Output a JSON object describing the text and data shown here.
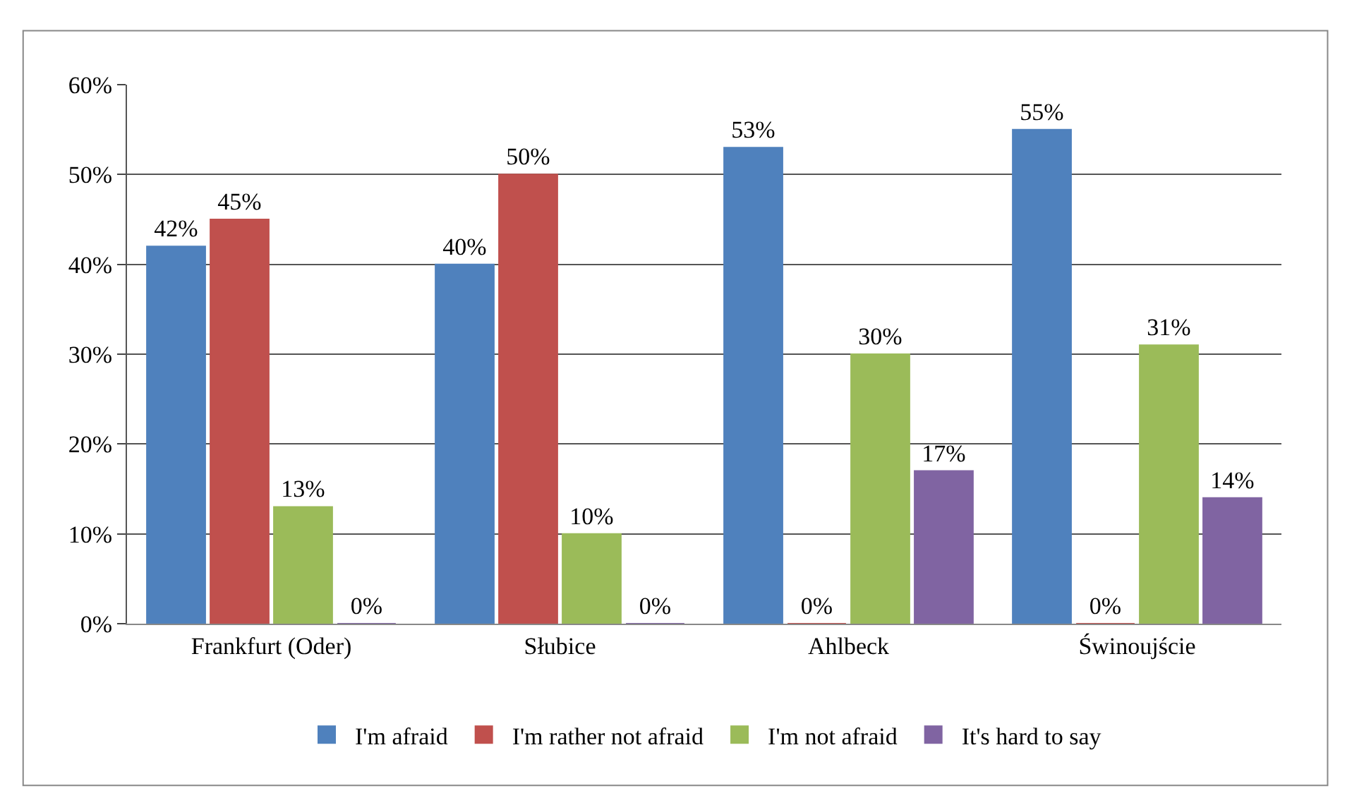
{
  "chart_data": {
    "type": "bar",
    "categories": [
      "Frankfurt (Oder)",
      "Słubice",
      "Ahlbeck",
      "Świnoujście"
    ],
    "series": [
      {
        "name": "I'm afraid",
        "color": "#4f81bd",
        "values": [
          42,
          40,
          53,
          55
        ],
        "value_labels": [
          "42%",
          "40%",
          "53%",
          "55%"
        ]
      },
      {
        "name": "I'm rather not afraid",
        "color": "#c0504d",
        "values": [
          45,
          50,
          0,
          0
        ],
        "value_labels": [
          "45%",
          "50%",
          "0%",
          "0%"
        ]
      },
      {
        "name": "I'm not afraid",
        "color": "#9bbb59",
        "values": [
          13,
          10,
          30,
          31
        ],
        "value_labels": [
          "13%",
          "10%",
          "30%",
          "31%"
        ]
      },
      {
        "name": "It's hard to say",
        "color": "#8064a2",
        "values": [
          0,
          0,
          17,
          14
        ],
        "value_labels": [
          "0%",
          "0%",
          "17%",
          "14%"
        ]
      }
    ],
    "ylim": [
      0,
      60
    ],
    "yticks": [
      {
        "value": 0,
        "label": "0%"
      },
      {
        "value": 10,
        "label": "10%"
      },
      {
        "value": 20,
        "label": "20%"
      },
      {
        "value": 30,
        "label": "30%"
      },
      {
        "value": 40,
        "label": "40%"
      },
      {
        "value": 50,
        "label": "50%"
      },
      {
        "value": 60,
        "label": "60%"
      }
    ],
    "grid": "y",
    "legend": "bottom"
  }
}
